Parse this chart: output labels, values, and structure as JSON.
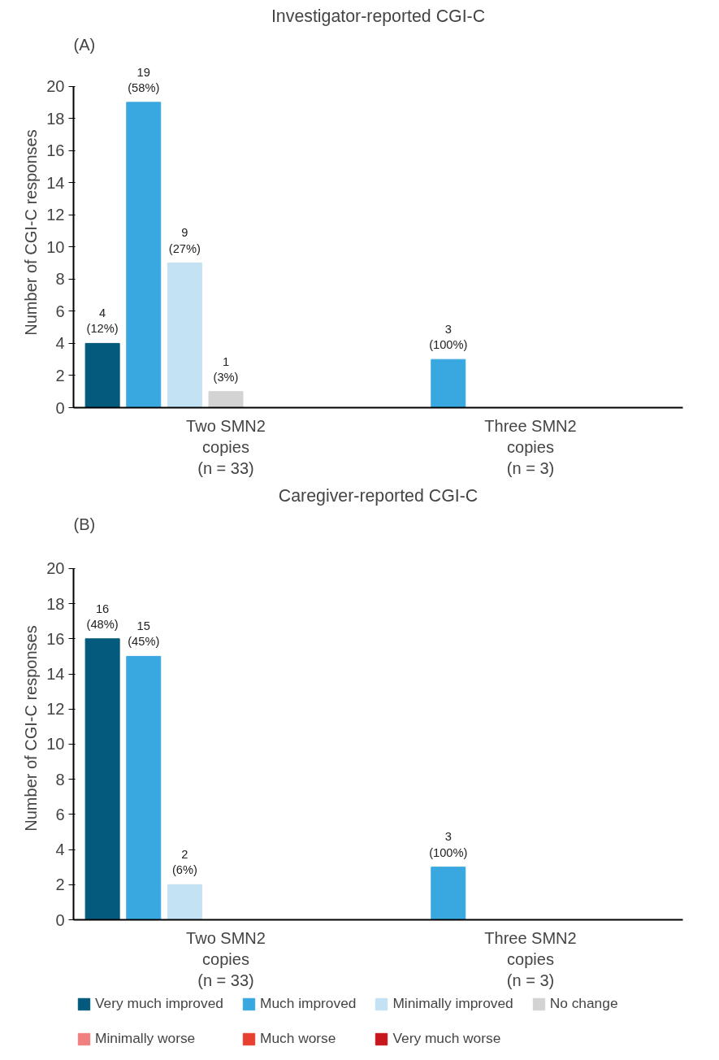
{
  "chart_data": [
    {
      "type": "bar",
      "title": "Investigator-reported CGI-C",
      "ylabel": "Number of CGI-C responses",
      "annotations": [
        "(A)"
      ],
      "categories": [
        "Two SMN2\ncopies\n(n = 33)",
        "Three SMN2\ncopies\n(n = 3)"
      ],
      "ylim": [
        0,
        20
      ],
      "yticks": [
        0,
        2,
        4,
        6,
        8,
        10,
        12,
        14,
        16,
        18,
        20
      ],
      "grid": false,
      "legend": false,
      "series": [
        {
          "color": "#045a7d",
          "values": [
            4,
            0
          ],
          "value_labels": [
            "4\n(12%)",
            null
          ]
        },
        {
          "color": "#3aa8e0",
          "values": [
            19,
            3
          ],
          "value_labels": [
            "19\n(58%)",
            "3\n(100%)"
          ]
        },
        {
          "color": "#c3e2f3",
          "values": [
            9,
            0
          ],
          "value_labels": [
            "9\n(27%)",
            null
          ]
        },
        {
          "color": "#d3d3d3",
          "values": [
            1,
            0
          ],
          "value_labels": [
            "1\n(3%)",
            null
          ]
        },
        {
          "color": "#f08080",
          "values": [
            0,
            0
          ],
          "value_labels": [
            null,
            null
          ]
        },
        {
          "color": "#e84030",
          "values": [
            0,
            0
          ],
          "value_labels": [
            null,
            null
          ]
        },
        {
          "color": "#c8161d",
          "values": [
            0,
            0
          ],
          "value_labels": [
            null,
            null
          ]
        }
      ]
    },
    {
      "type": "bar",
      "title": "Caregiver-reported CGI-C",
      "ylabel": "Number of CGI-C responses",
      "annotations": [
        "(B)"
      ],
      "categories": [
        "Two SMN2\ncopies\n(n = 33)",
        "Three SMN2\ncopies\n(n = 3)"
      ],
      "ylim": [
        0,
        20
      ],
      "yticks": [
        0,
        2,
        4,
        6,
        8,
        10,
        12,
        14,
        16,
        18,
        20
      ],
      "grid": false,
      "legend": "bottom",
      "series": [
        {
          "name": "Very much improved",
          "color": "#045a7d",
          "values": [
            16,
            0
          ],
          "value_labels": [
            "16\n(48%)",
            null
          ]
        },
        {
          "name": "Much improved",
          "color": "#3aa8e0",
          "values": [
            15,
            3
          ],
          "value_labels": [
            "15\n(45%)",
            "3\n(100%)"
          ]
        },
        {
          "name": "Minimally improved",
          "color": "#c3e2f3",
          "values": [
            2,
            0
          ],
          "value_labels": [
            "2\n(6%)",
            null
          ]
        },
        {
          "name": "No change",
          "color": "#d3d3d3",
          "values": [
            0,
            0
          ],
          "value_labels": [
            null,
            null
          ]
        },
        {
          "name": "Minimally worse",
          "color": "#f08080",
          "values": [
            0,
            0
          ],
          "value_labels": [
            null,
            null
          ]
        },
        {
          "name": "Much worse",
          "color": "#e84030",
          "values": [
            0,
            0
          ],
          "value_labels": [
            null,
            null
          ]
        },
        {
          "name": "Very much worse",
          "color": "#c8161d",
          "values": [
            0,
            0
          ],
          "value_labels": [
            null,
            null
          ]
        }
      ]
    }
  ]
}
